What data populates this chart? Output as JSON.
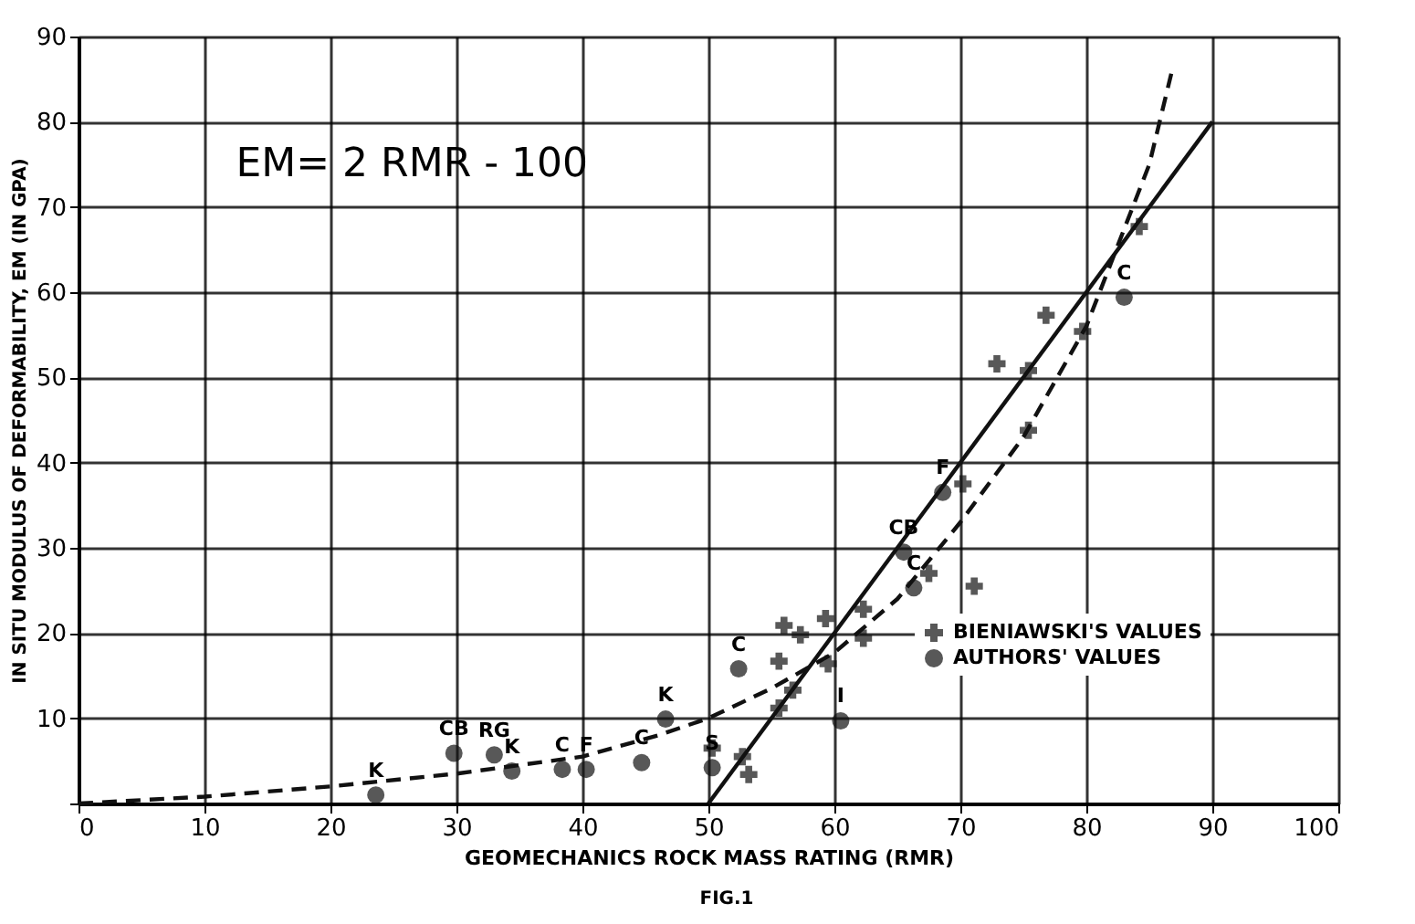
{
  "chart_data": {
    "type": "scatter",
    "xlabel": "GEOMECHANICS ROCK MASS RATING (RMR)",
    "ylabel": "IN SITU MODULUS OF DEFORMABILITY, EM (IN GPA)",
    "xlim": [
      0,
      100
    ],
    "xticks": [
      0,
      10,
      20,
      30,
      40,
      50,
      60,
      70,
      80,
      90,
      100
    ],
    "ylim": [
      0,
      90
    ],
    "yticks": [
      {
        "value": 0,
        "label": null
      },
      10,
      20,
      30,
      40,
      50,
      60,
      70,
      80,
      90
    ],
    "grid": true,
    "legend": "bottom right",
    "series": [
      {
        "name": "BIENIAWSKI'S VALUES",
        "type": "scatter",
        "marker": "cross",
        "color": "#111111",
        "x": [
          76.8,
          72.9,
          75.4,
          79.7,
          75.4,
          70.2,
          67.5,
          71.1,
          56,
          57.3,
          59.3,
          62.3,
          62.3,
          55.6,
          59.5,
          56.7,
          55.6,
          50.3,
          52.7,
          53.2,
          84.2
        ],
        "values": [
          57.3,
          51.6,
          50.8,
          55.4,
          43.8,
          37.5,
          27,
          25.5,
          20.9,
          19.8,
          21.7,
          22.8,
          19.4,
          16.7,
          16.4,
          13.3,
          11.2,
          6.5,
          5.5,
          3.4,
          67.7
        ]
      },
      {
        "name": "AUTHORS' VALUES",
        "type": "scatter",
        "marker": "circle",
        "color": "#111111",
        "x": [
          23.6,
          29.8,
          33,
          34.4,
          38.4,
          40.3,
          44.7,
          46.6,
          50.3,
          52.4,
          60.5,
          65.5,
          68.6,
          66.3,
          83
        ],
        "values": [
          1,
          5.9,
          5.7,
          3.8,
          4,
          4,
          4.8,
          9.9,
          4.2,
          15.8,
          9.7,
          29.5,
          36.5,
          25.3,
          59.4
        ]
      },
      {
        "type": "line",
        "line_style": "solid",
        "color": "#111111",
        "x": [
          50,
          90
        ],
        "values": [
          0,
          80
        ]
      },
      {
        "type": "line",
        "line_style": "dashed",
        "color": "#111111",
        "x": [
          0,
          10,
          20,
          30,
          40,
          46,
          50,
          55,
          60,
          65,
          70,
          75,
          80,
          85,
          86.8
        ],
        "values": [
          0,
          0.8,
          2,
          3.5,
          5.5,
          8,
          10,
          13.5,
          17.7,
          24,
          33,
          43,
          56,
          75,
          86
        ]
      }
    ],
    "annotations": [
      "EM= 2 RMR - 100",
      "FIG.1",
      {
        "text": "K",
        "x": 23.6,
        "y": 1
      },
      {
        "text": "CB",
        "x": 29.8,
        "y": 5.9
      },
      {
        "text": "RG",
        "x": 33,
        "y": 5.7
      },
      {
        "text": "K",
        "x": 34.4,
        "y": 3.8
      },
      {
        "text": "C",
        "x": 38.4,
        "y": 4
      },
      {
        "text": "F",
        "x": 40.3,
        "y": 4
      },
      {
        "text": "C",
        "x": 44.7,
        "y": 4.8
      },
      {
        "text": "K",
        "x": 46.6,
        "y": 9.9
      },
      {
        "text": "S",
        "x": 50.3,
        "y": 4.2
      },
      {
        "text": "C",
        "x": 52.4,
        "y": 15.8
      },
      {
        "text": "I",
        "x": 60.5,
        "y": 9.7
      },
      {
        "text": "CB",
        "x": 65.5,
        "y": 29.5
      },
      {
        "text": "F",
        "x": 68.6,
        "y": 36.5
      },
      {
        "text": "C",
        "x": 66.3,
        "y": 25.3
      },
      {
        "text": "C",
        "x": 83,
        "y": 59.4
      }
    ]
  }
}
